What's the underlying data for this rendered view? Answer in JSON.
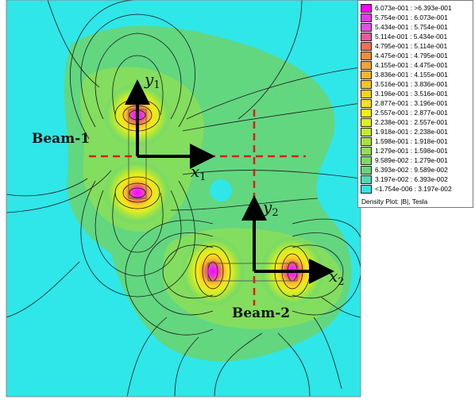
{
  "legend": {
    "entries": [
      {
        "label": "6.073e-001 : >6.393e-001",
        "color": "#ff00ff"
      },
      {
        "label": "5.754e-001 : 6.073e-001",
        "color": "#ee33ee"
      },
      {
        "label": "5.434e-001 : 5.754e-001",
        "color": "#e24fdf"
      },
      {
        "label": "5.114e-001 : 5.434e-001",
        "color": "#e8589d"
      },
      {
        "label": "4.795e-001 : 5.114e-001",
        "color": "#ef7055"
      },
      {
        "label": "4.475e-001 : 4.795e-001",
        "color": "#f58c3a"
      },
      {
        "label": "4.155e-001 : 4.475e-001",
        "color": "#f7a235"
      },
      {
        "label": "3.836e-001 : 4.155e-001",
        "color": "#f8b42e"
      },
      {
        "label": "3.516e-001 : 3.836e-001",
        "color": "#f9c326"
      },
      {
        "label": "3.196e-001 : 3.516e-001",
        "color": "#fbd11f"
      },
      {
        "label": "2.877e-001 : 3.196e-001",
        "color": "#fde019"
      },
      {
        "label": "2.557e-001 : 2.877e-001",
        "color": "#f3ee1a"
      },
      {
        "label": "2.238e-001 : 2.557e-001",
        "color": "#dcee22"
      },
      {
        "label": "1.918e-001 : 2.238e-001",
        "color": "#c2ea32"
      },
      {
        "label": "1.598e-001 : 1.918e-001",
        "color": "#a8e43e"
      },
      {
        "label": "1.279e-001 : 1.598e-001",
        "color": "#92e050"
      },
      {
        "label": "9.589e-002 : 1.279e-001",
        "color": "#7cdc62"
      },
      {
        "label": "6.393e-002 : 9.589e-002",
        "color": "#66d57a"
      },
      {
        "label": "3.197e-002 : 6.393e-002",
        "color": "#53d8b4"
      },
      {
        "label": "<1.754e-006 : 3.197e-002",
        "color": "#2fe6e9"
      }
    ],
    "caption": "Density Plot: |B|, Tesla"
  },
  "beams": [
    {
      "label": "Beam-1"
    },
    {
      "label": "Beam-2"
    }
  ],
  "axes": [
    {
      "var": "y",
      "sub": "1"
    },
    {
      "var": "x",
      "sub": "1"
    },
    {
      "var": "y",
      "sub": "2"
    },
    {
      "var": "x",
      "sub": "2"
    }
  ],
  "colors": {
    "background": "#2fe6e9",
    "low_field": "#66d57a",
    "mid_field": "#a8e43e",
    "peak": "#ff00ff",
    "centerline": "#e01a1a",
    "arrow": "#000000"
  }
}
